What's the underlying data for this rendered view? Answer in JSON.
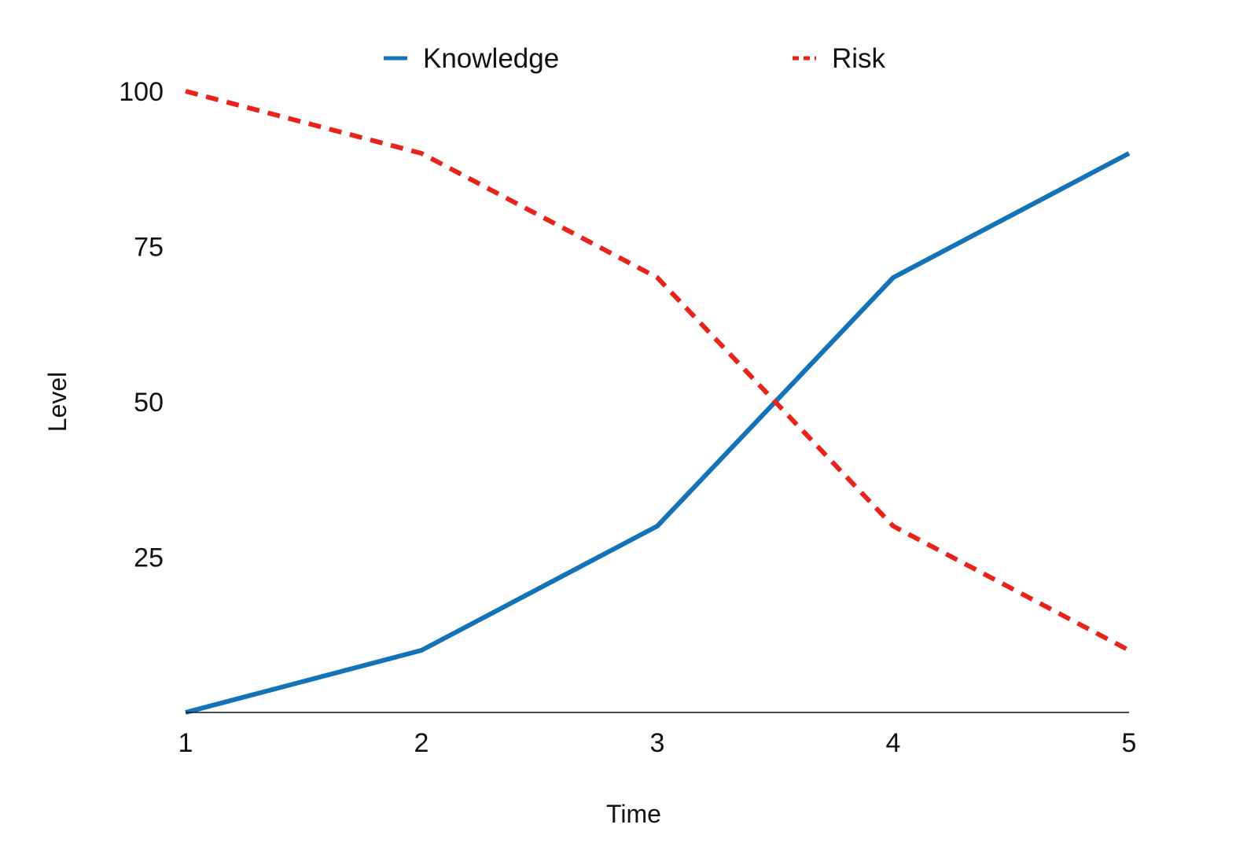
{
  "chart_data": {
    "type": "line",
    "x": [
      1,
      2,
      3,
      4,
      5
    ],
    "xlabel": "Time",
    "ylabel": "Level",
    "ylim": [
      0,
      100
    ],
    "yticks": [
      25,
      50,
      75,
      100
    ],
    "xticks": [
      1,
      2,
      3,
      4,
      5
    ],
    "grid": false,
    "legend_position": "top-center",
    "series": [
      {
        "name": "Knowledge",
        "values": [
          0,
          10,
          30,
          70,
          90
        ],
        "color": "#1472b8",
        "style": "solid"
      },
      {
        "name": "Risk",
        "values": [
          100,
          90,
          70,
          30,
          10
        ],
        "color": "#e8231b",
        "style": "dashed"
      }
    ]
  }
}
